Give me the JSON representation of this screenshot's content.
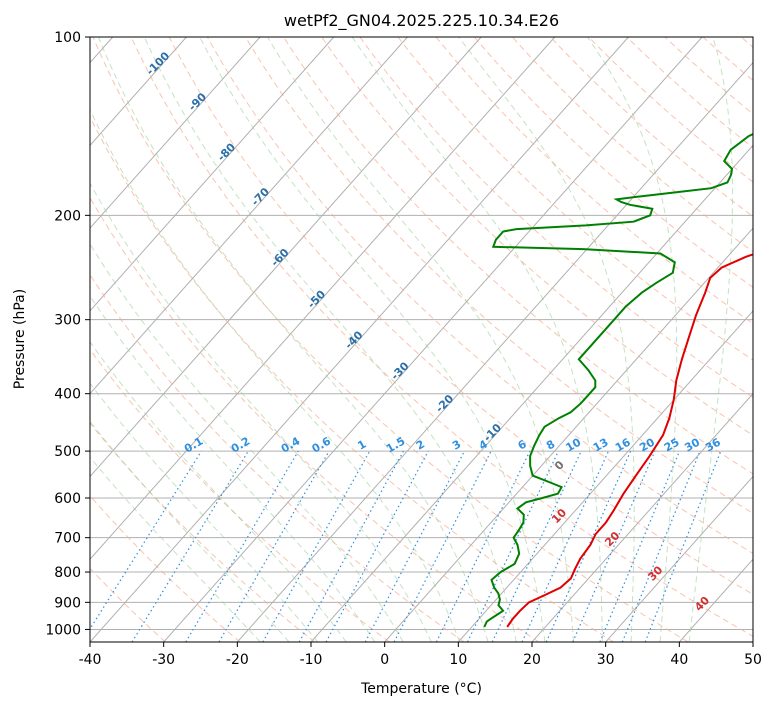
{
  "chart_data": {
    "type": "line",
    "title": "wetPf2_GN04.2025.225.10.34.E26",
    "xlabel": "Temperature (°C)",
    "ylabel": "Pressure (hPa)",
    "xlim": [
      -40,
      50
    ],
    "ylim": [
      1050,
      100
    ],
    "y_scale": "log",
    "x_ticks": [
      -40,
      -30,
      -20,
      -10,
      0,
      10,
      20,
      30,
      40,
      50
    ],
    "y_ticks": [
      1000,
      900,
      800,
      700,
      600,
      500,
      400,
      300,
      200,
      100
    ],
    "grid": true,
    "series": [
      {
        "color": "#e00000",
        "points": [
          [
            14.8,
            990
          ],
          [
            14.6,
            960
          ],
          [
            14.6,
            930
          ],
          [
            14.8,
            900
          ],
          [
            15.8,
            880
          ],
          [
            17.3,
            850
          ],
          [
            17.6,
            820
          ],
          [
            17.0,
            790
          ],
          [
            16.5,
            760
          ],
          [
            16.2,
            720
          ],
          [
            15.6,
            690
          ],
          [
            15.6,
            660
          ],
          [
            15.2,
            630
          ],
          [
            14.5,
            590
          ],
          [
            14.0,
            550
          ],
          [
            13.5,
            510
          ],
          [
            12.8,
            470
          ],
          [
            11.6,
            440
          ],
          [
            10.0,
            410
          ],
          [
            8.0,
            380
          ],
          [
            6.2,
            350
          ],
          [
            4.4,
            320
          ],
          [
            2.8,
            295
          ],
          [
            1.3,
            270
          ],
          [
            0.2,
            255
          ],
          [
            0.5,
            245
          ],
          [
            2.5,
            235
          ],
          [
            5.6,
            225
          ],
          [
            8.5,
            215
          ],
          [
            10.5,
            205
          ],
          [
            12.5,
            192
          ],
          [
            14.0,
            180
          ],
          [
            14.3,
            168
          ],
          [
            16.0,
            158
          ],
          [
            18.8,
            148
          ],
          [
            21.0,
            140
          ],
          [
            21.5,
            135
          ],
          [
            22.0,
            128
          ],
          [
            23.0,
            122
          ],
          [
            24.5,
            118
          ],
          [
            26.0,
            113
          ],
          [
            27.5,
            108
          ],
          [
            29.0,
            104
          ],
          [
            30.3,
            100
          ]
        ]
      },
      {
        "color": "#008000",
        "points": [
          [
            11.7,
            990
          ],
          [
            11.4,
            970
          ],
          [
            11.7,
            955
          ],
          [
            12.3,
            930
          ],
          [
            11.0,
            910
          ],
          [
            10.5,
            890
          ],
          [
            9.6,
            870
          ],
          [
            8.3,
            850
          ],
          [
            7.0,
            825
          ],
          [
            7.3,
            800
          ],
          [
            8.2,
            775
          ],
          [
            7.6,
            745
          ],
          [
            6.3,
            720
          ],
          [
            4.9,
            700
          ],
          [
            4.7,
            680
          ],
          [
            4.4,
            660
          ],
          [
            3.5,
            640
          ],
          [
            1.9,
            625
          ],
          [
            2.3,
            610
          ],
          [
            4.0,
            600
          ],
          [
            5.6,
            590
          ],
          [
            5.3,
            575
          ],
          [
            3.2,
            565
          ],
          [
            0.0,
            550
          ],
          [
            -1.5,
            530
          ],
          [
            -2.7,
            510
          ],
          [
            -3.4,
            490
          ],
          [
            -4.0,
            470
          ],
          [
            -4.3,
            455
          ],
          [
            -3.4,
            440
          ],
          [
            -2.5,
            430
          ],
          [
            -2.2,
            415
          ],
          [
            -2.2,
            400
          ],
          [
            -2.2,
            390
          ],
          [
            -3.0,
            380
          ],
          [
            -5.2,
            365
          ],
          [
            -7.8,
            350
          ],
          [
            -7.8,
            330
          ],
          [
            -7.8,
            300
          ],
          [
            -7.8,
            285
          ],
          [
            -7.3,
            270
          ],
          [
            -6.5,
            260
          ],
          [
            -5.5,
            250
          ],
          [
            -6.5,
            240
          ],
          [
            -9.5,
            232
          ],
          [
            -20.5,
            228
          ],
          [
            -33.0,
            226
          ],
          [
            -33.5,
            220
          ],
          [
            -33.5,
            213
          ],
          [
            -32.0,
            211
          ],
          [
            -23.0,
            208
          ],
          [
            -17.0,
            205
          ],
          [
            -15.5,
            200
          ],
          [
            -16.0,
            195
          ],
          [
            -19.5,
            192
          ],
          [
            -21.0,
            190
          ],
          [
            -22.0,
            188
          ],
          [
            -19.5,
            186
          ],
          [
            -15.0,
            183
          ],
          [
            -10.5,
            180
          ],
          [
            -9.0,
            176
          ],
          [
            -9.4,
            171
          ],
          [
            -10.0,
            167
          ],
          [
            -12.0,
            162
          ],
          [
            -12.5,
            155
          ],
          [
            -11.7,
            147
          ],
          [
            -9.0,
            138
          ],
          [
            -7.5,
            130
          ],
          [
            -6.5,
            123
          ],
          [
            -5.0,
            115
          ],
          [
            -3.4,
            108
          ],
          [
            -1.0,
            103
          ],
          [
            0.0,
            100
          ]
        ]
      }
    ],
    "skewed_isotherm_labels": [
      "-100",
      "-90",
      "-80",
      "-70",
      "-60",
      "-50",
      "-40",
      "-30",
      "-20",
      "-10"
    ],
    "mixing_ratio_labels": [
      "0.1",
      "0.2",
      "0.4",
      "0.6",
      "1",
      "1.5",
      "2",
      "3",
      "4",
      "6",
      "8",
      "10",
      "13",
      "16",
      "20",
      "25",
      "30",
      "36"
    ],
    "red_isotherm_labels": [
      "10",
      "20",
      "30",
      "40"
    ],
    "zero_isotherm_label": "0"
  }
}
